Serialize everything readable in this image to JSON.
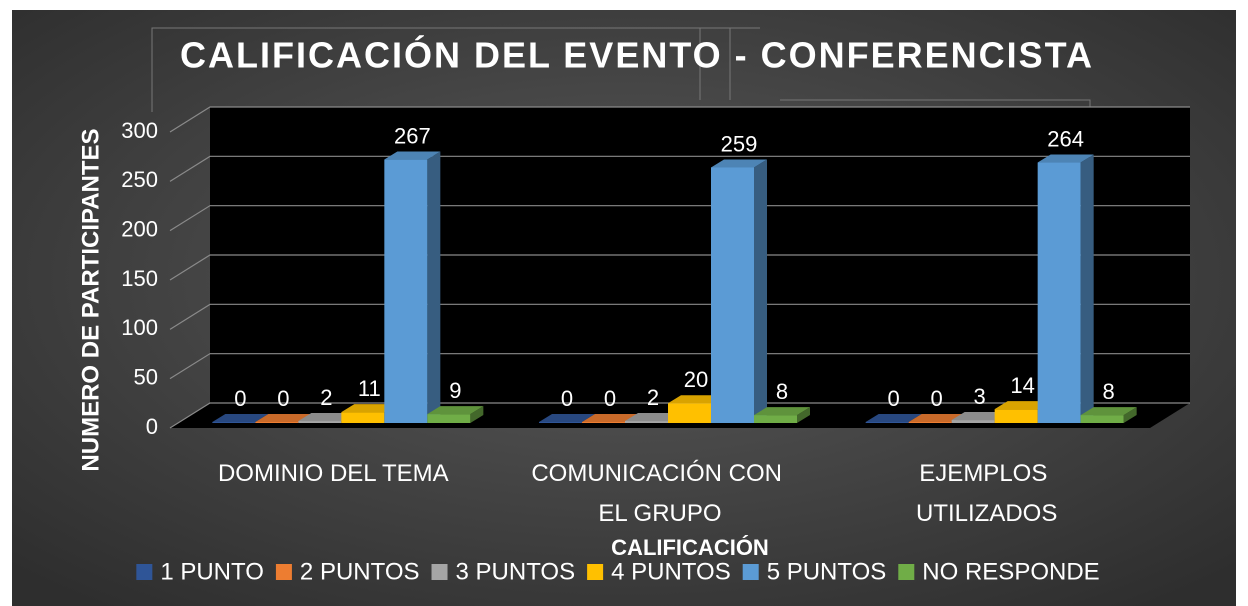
{
  "chart_data": {
    "type": "bar3d",
    "title": "CALIFICACIÓN DEL EVENTO - CONFERENCISTA",
    "y_label": "NUMERO DE  PARTICIPANTES",
    "x_label": "CALIFICACIÓN",
    "categories": [
      "DOMINIO DEL TEMA",
      "COMUNICACIÓN CON EL GRUPO",
      "EJEMPLOS UTILIZADOS"
    ],
    "series": [
      {
        "name": "1 PUNTO",
        "color": "#2f5597",
        "values": [
          0,
          0,
          0
        ]
      },
      {
        "name": "2 PUNTOS",
        "color": "#ed7d31",
        "values": [
          0,
          0,
          0
        ]
      },
      {
        "name": "3 PUNTOS",
        "color": "#a5a5a5",
        "values": [
          2,
          2,
          3
        ]
      },
      {
        "name": "4 PUNTOS",
        "color": "#ffc000",
        "values": [
          11,
          20,
          14
        ]
      },
      {
        "name": "5 PUNTOS",
        "color": "#5b9bd5",
        "values": [
          267,
          259,
          264
        ]
      },
      {
        "name": "NO RESPONDE",
        "color": "#70ad47",
        "values": [
          9,
          8,
          8
        ]
      }
    ],
    "ylim": [
      0,
      300
    ],
    "yticks": [
      0,
      50,
      100,
      150,
      200,
      250,
      300
    ],
    "grid": true
  }
}
